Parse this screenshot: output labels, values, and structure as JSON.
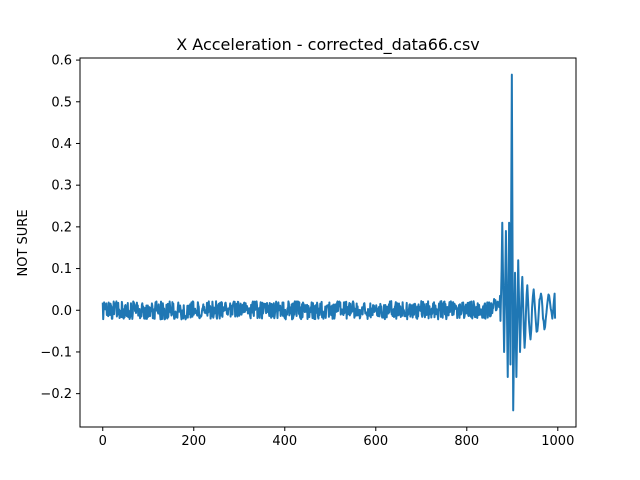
{
  "chart_data": {
    "type": "line",
    "title": "X Acceleration - corrected_data66.csv",
    "xlabel": "",
    "ylabel": "NOT SURE",
    "xlim": [
      -50,
      1040
    ],
    "ylim": [
      -0.28,
      0.605
    ],
    "xticks": [
      0,
      200,
      400,
      600,
      800,
      1000
    ],
    "xtick_labels": [
      "0",
      "200",
      "400",
      "600",
      "800",
      "1000"
    ],
    "yticks": [
      -0.2,
      -0.1,
      0.0,
      0.1,
      0.2,
      0.3,
      0.4,
      0.5,
      0.6
    ],
    "ytick_labels": [
      "−0.2",
      "−0.1",
      "0.0",
      "0.1",
      "0.2",
      "0.3",
      "0.4",
      "0.5",
      "0.6"
    ],
    "grid": false,
    "legend": "none",
    "series": [
      {
        "color": "#1f77b4",
        "n_points": 993,
        "baseline_noise_amplitude": 0.02,
        "segments": [
          {
            "x_start": 0,
            "x_end": 860,
            "pattern": "noise",
            "amplitude": 0.022
          },
          {
            "x_start": 860,
            "x_end": 875,
            "pattern": "noise",
            "amplitude": 0.035
          }
        ],
        "key_points": [
          {
            "x": 878,
            "y": 0.21
          },
          {
            "x": 882,
            "y": -0.1
          },
          {
            "x": 886,
            "y": 0.19
          },
          {
            "x": 890,
            "y": -0.16
          },
          {
            "x": 893,
            "y": 0.21
          },
          {
            "x": 896,
            "y": -0.13
          },
          {
            "x": 899,
            "y": 0.565
          },
          {
            "x": 902,
            "y": -0.24
          },
          {
            "x": 906,
            "y": 0.09
          },
          {
            "x": 909,
            "y": -0.16
          },
          {
            "x": 913,
            "y": 0.12
          },
          {
            "x": 917,
            "y": -0.1
          },
          {
            "x": 922,
            "y": 0.08
          },
          {
            "x": 927,
            "y": -0.09
          },
          {
            "x": 933,
            "y": 0.06
          },
          {
            "x": 940,
            "y": -0.07
          },
          {
            "x": 947,
            "y": 0.05
          },
          {
            "x": 955,
            "y": -0.05
          },
          {
            "x": 963,
            "y": 0.04
          },
          {
            "x": 972,
            "y": -0.04
          },
          {
            "x": 981,
            "y": 0.035
          },
          {
            "x": 988,
            "y": -0.02
          },
          {
            "x": 993,
            "y": 0.04
          },
          {
            "x": 994,
            "y": -0.02
          }
        ]
      }
    ]
  }
}
